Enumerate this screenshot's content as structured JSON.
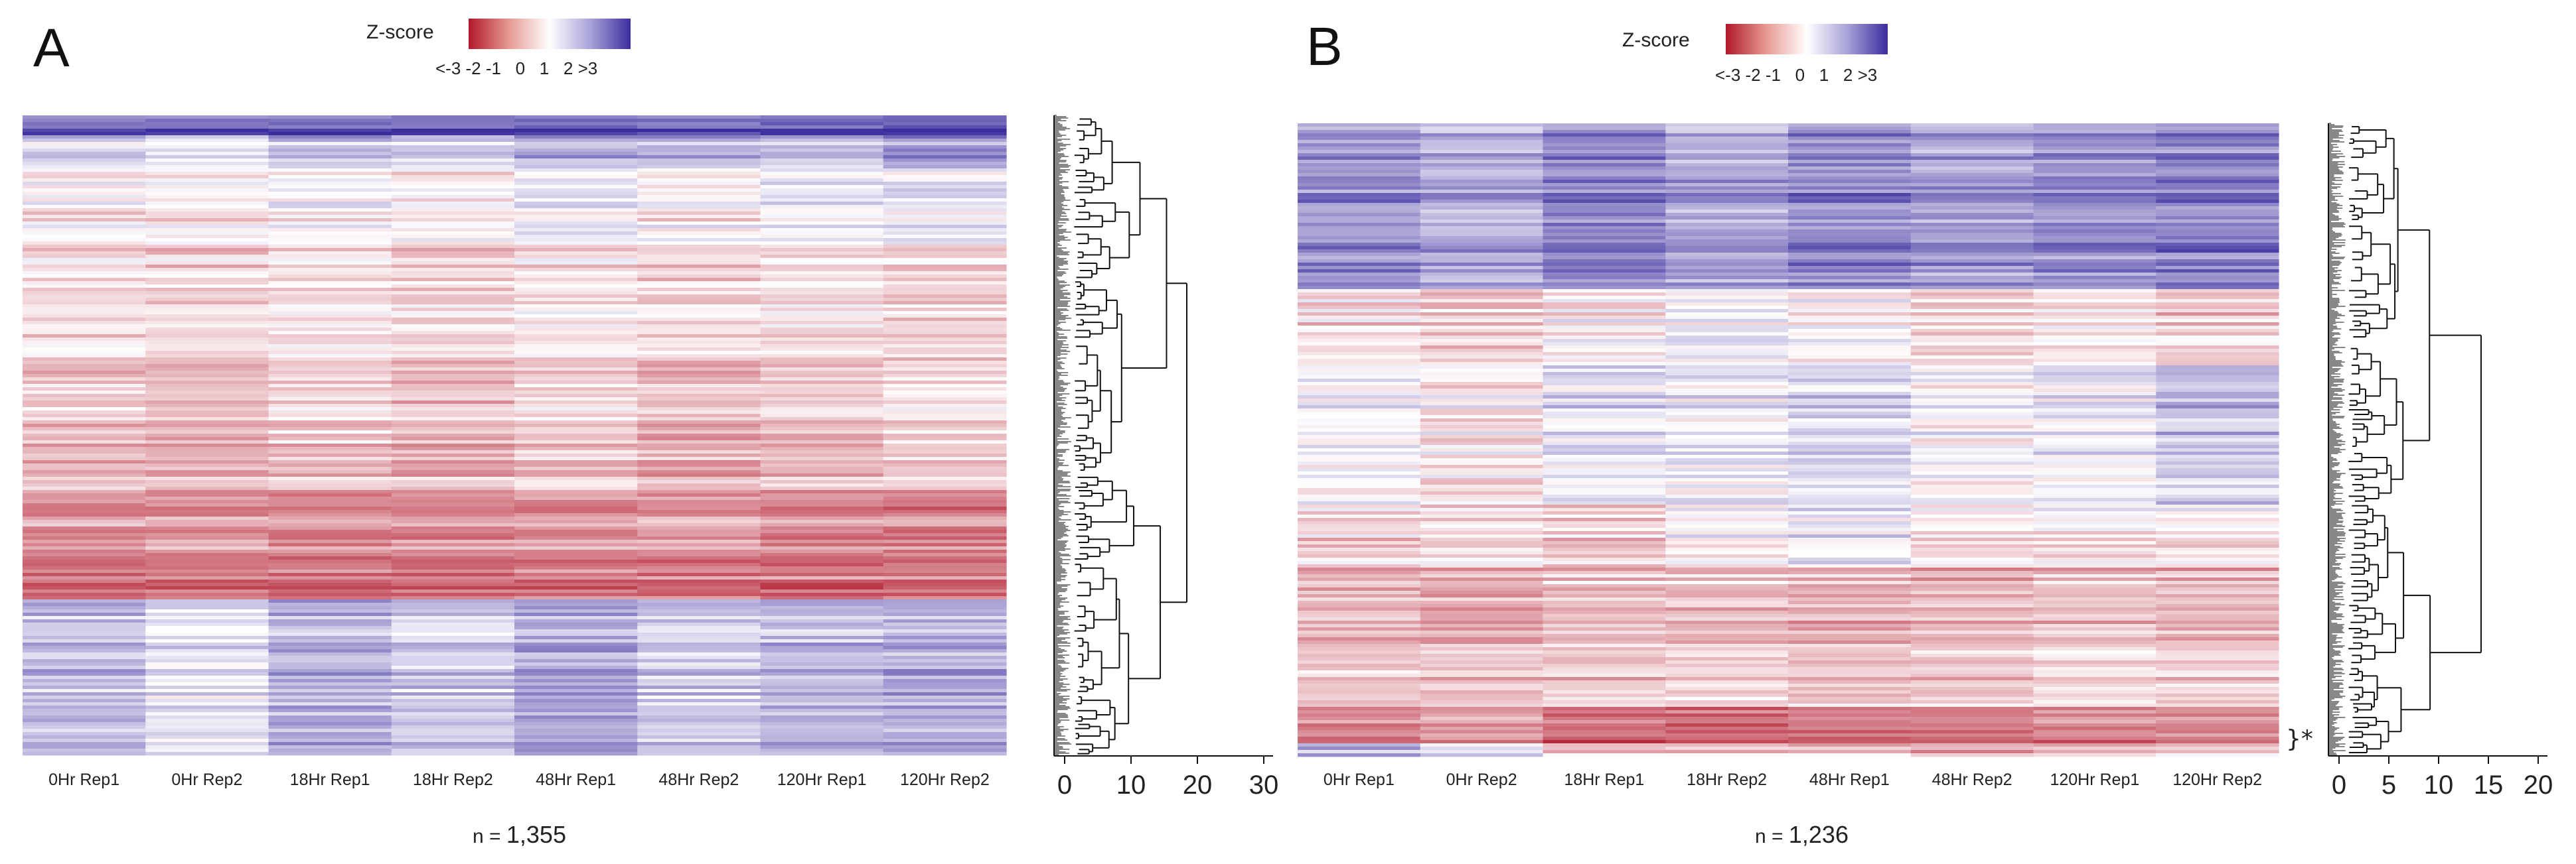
{
  "chart_data": [
    {
      "type": "heatmap",
      "panel": "A",
      "colorbar": {
        "title": "Z-score",
        "tick_labels": "<-3 -2 -1   0   1   2 >3",
        "range": [
          -3,
          3
        ],
        "low_color": "#b2182b",
        "mid_color": "#ffffff",
        "high_color": "#3b2d9e"
      },
      "columns": [
        "0Hr Rep1",
        "0Hr Rep2",
        "18Hr Rep1",
        "18Hr Rep2",
        "48Hr Rep1",
        "48Hr Rep2",
        "120Hr Rep1",
        "120Hr Rep2"
      ],
      "row_block_profiles": [
        {
          "fraction": 0.03,
          "values": [
            2.2,
            2.2,
            2.5,
            2.3,
            2.4,
            2.2,
            2.5,
            2.8
          ]
        },
        {
          "fraction": 0.05,
          "values": [
            0.6,
            0.3,
            1.0,
            0.7,
            1.2,
            1.0,
            0.9,
            1.5
          ]
        },
        {
          "fraction": 0.12,
          "values": [
            -0.2,
            -0.3,
            -0.1,
            -0.3,
            0.1,
            -0.2,
            0.1,
            0.2
          ]
        },
        {
          "fraction": 0.18,
          "values": [
            -0.4,
            -0.5,
            -0.3,
            -0.5,
            -0.3,
            -0.5,
            -0.4,
            -0.6
          ]
        },
        {
          "fraction": 0.2,
          "values": [
            -0.8,
            -0.9,
            -0.7,
            -0.9,
            -0.6,
            -0.9,
            -0.7,
            -0.5
          ]
        },
        {
          "fraction": 0.1,
          "values": [
            -1.3,
            -1.2,
            -1.4,
            -1.4,
            -1.3,
            -1.2,
            -1.4,
            -1.5
          ]
        },
        {
          "fraction": 0.07,
          "values": [
            -1.7,
            -1.7,
            -1.8,
            -1.8,
            -1.7,
            -1.7,
            -1.8,
            -1.8
          ]
        },
        {
          "fraction": 0.25,
          "values": [
            1.0,
            0.4,
            1.1,
            0.7,
            1.3,
            0.8,
            1.0,
            1.2
          ]
        }
      ],
      "dendrogram": {
        "axis_ticks": [
          "0",
          "10",
          "20",
          "30"
        ],
        "axis_range": [
          0,
          30
        ]
      },
      "n_prefix": "n =",
      "n_value": "1,355"
    },
    {
      "type": "heatmap",
      "panel": "B",
      "colorbar": {
        "title": "Z-score",
        "tick_labels": "<-3 -2 -1   0   1   2 >3",
        "range": [
          -3,
          3
        ],
        "low_color": "#b2182b",
        "mid_color": "#ffffff",
        "high_color": "#3b2d9e"
      },
      "columns": [
        "0Hr Rep1",
        "0Hr Rep2",
        "18Hr Rep1",
        "18Hr Rep2",
        "48Hr Rep1",
        "48Hr Rep2",
        "120Hr Rep1",
        "120Hr Rep2"
      ],
      "row_block_profiles": [
        {
          "fraction": 0.26,
          "values": [
            1.6,
            1.3,
            1.9,
            1.4,
            1.8,
            1.5,
            1.7,
            1.9
          ]
        },
        {
          "fraction": 0.12,
          "values": [
            -0.4,
            -0.6,
            -0.2,
            0.2,
            -0.1,
            -0.5,
            -0.3,
            -0.6
          ]
        },
        {
          "fraction": 0.22,
          "values": [
            0.2,
            -0.2,
            0.5,
            0.3,
            0.6,
            0.1,
            0.3,
            0.9
          ]
        },
        {
          "fraction": 0.1,
          "values": [
            -0.5,
            -0.4,
            -0.6,
            -0.1,
            0.2,
            -0.3,
            -0.2,
            -0.2
          ]
        },
        {
          "fraction": 0.22,
          "values": [
            -1.0,
            -1.1,
            -0.9,
            -0.9,
            -1.0,
            -0.9,
            -0.8,
            -0.9
          ]
        },
        {
          "fraction": 0.06,
          "values": [
            -1.6,
            -1.3,
            -1.9,
            -1.9,
            -1.9,
            -1.8,
            -1.7,
            -1.6
          ]
        },
        {
          "fraction": 0.02,
          "values": [
            1.2,
            0.6,
            -0.8,
            -0.9,
            -0.8,
            -0.9,
            -0.8,
            -0.7
          ]
        }
      ],
      "dendrogram": {
        "axis_ticks": [
          "0",
          "5",
          "10",
          "15",
          "20"
        ],
        "axis_range": [
          0,
          20
        ]
      },
      "bracket_label": "}*",
      "n_prefix": "n =",
      "n_value": "1,236"
    }
  ]
}
